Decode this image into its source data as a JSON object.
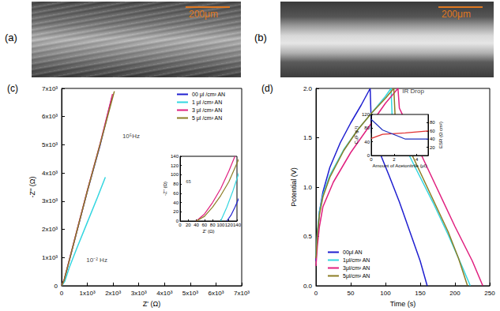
{
  "chart_data": [
    {
      "type": "image",
      "title": "(a)",
      "annotations": [
        {
          "text": "200μm"
        }
      ]
    },
    {
      "type": "image",
      "title": "(b)",
      "annotations": [
        {
          "text": "200μm"
        }
      ]
    },
    {
      "type": "line",
      "title": "(c)",
      "xlabel": "Z' (Ω)",
      "ylabel": "-Z'' (Ω)",
      "xlim": [
        0,
        7000
      ],
      "ylim": [
        0,
        7000
      ],
      "xticks": [
        0,
        {
          "value": 1000,
          "label": "1x10³"
        },
        {
          "value": 2000,
          "label": "2x10³"
        },
        {
          "value": 3000,
          "label": "3x10³"
        },
        {
          "value": 4000,
          "label": "4x10³"
        },
        {
          "value": 5000,
          "label": "5x10³"
        },
        {
          "value": 6000,
          "label": "6x10³"
        },
        {
          "value": 7000,
          "label": "7x10³"
        }
      ],
      "yticks": [
        0,
        {
          "value": 1000,
          "label": "1x10³"
        },
        {
          "value": 2000,
          "label": "2x10³"
        },
        {
          "value": 3000,
          "label": "3x10³"
        },
        {
          "value": 4000,
          "label": "4x10³"
        },
        {
          "value": 5000,
          "label": "5x10³"
        },
        {
          "value": 6000,
          "label": "6x10³"
        },
        {
          "value": 7000,
          "label": "7x10³"
        }
      ],
      "grid": false,
      "legend": "upper right",
      "series": [
        {
          "name": "00 μl /cm² AN",
          "color": "#1f1fd0",
          "x": [
            0,
            100,
            300,
            600,
            1000,
            1500,
            1950
          ],
          "values": [
            0,
            200,
            900,
            1950,
            3350,
            5000,
            6650
          ]
        },
        {
          "name": "1 μl /cm² AN",
          "color": "#33d6e0",
          "x": [
            0,
            120,
            300,
            600,
            1000,
            1400,
            1700
          ],
          "values": [
            0,
            150,
            650,
            1350,
            2250,
            3150,
            3850
          ]
        },
        {
          "name": "3 μl /cm² AN",
          "color": "#e0207f",
          "x": [
            0,
            100,
            300,
            600,
            1000,
            1500,
            1980
          ],
          "values": [
            0,
            220,
            920,
            1980,
            3380,
            5050,
            6800
          ]
        },
        {
          "name": "5 μl /cm² AN",
          "color": "#8c7d25",
          "x": [
            0,
            100,
            300,
            600,
            1000,
            1500,
            2050
          ],
          "values": [
            0,
            210,
            900,
            1960,
            3360,
            5030,
            6900
          ]
        }
      ],
      "annotations": [
        {
          "text": "10⁵Hz",
          "x": 2300,
          "y": 5300
        },
        {
          "text": "10⁻² Hz",
          "x": 900,
          "y": 900
        }
      ],
      "inset": {
        "type": "line",
        "xlabel": "Z' (Ω)",
        "ylabel": "-Z'' (Ω)",
        "xlim": [
          0,
          140
        ],
        "ylim": [
          0,
          140
        ],
        "xticks": [
          0,
          20,
          40,
          60,
          80,
          100,
          120,
          140
        ],
        "yticks": [
          0,
          20,
          40,
          60,
          80,
          100,
          120,
          140
        ],
        "grid": false,
        "series": [
          {
            "color": "#1f1fd0",
            "x": [
              115,
              125,
              135,
              145
            ],
            "values": [
              0,
              12,
              30,
              50
            ]
          },
          {
            "color": "#33d6e0",
            "x": [
              100,
              115,
              130,
              145
            ],
            "values": [
              0,
              30,
              65,
              105
            ]
          },
          {
            "color": "#e0207f",
            "x": [
              40,
              60,
              80,
              100,
              120,
              135
            ],
            "values": [
              0,
              15,
              40,
              70,
              108,
              140
            ]
          },
          {
            "color": "#8c7d25",
            "x": [
              40,
              60,
              80,
              100,
              120,
              140,
              145
            ],
            "values": [
              0,
              10,
              30,
              55,
              85,
              125,
              135
            ]
          }
        ],
        "annotations": [
          {
            "text": "65",
            "x": 10,
            "y": 85
          }
        ]
      }
    },
    {
      "type": "line",
      "title": "(d)",
      "xlabel": "Time (s)",
      "ylabel": "Potential (V)",
      "xlim": [
        0,
        250
      ],
      "ylim": [
        0,
        2
      ],
      "xticks": [
        0,
        50,
        100,
        150,
        200,
        250
      ],
      "yticks": [
        {
          "value": 0,
          "label": "0.0"
        },
        0.5,
        {
          "value": 1,
          "label": "1.0"
        },
        1.5,
        {
          "value": 2,
          "label": "2.0"
        }
      ],
      "grid": false,
      "legend": "lower left",
      "series": [
        {
          "name": "00μl AN",
          "color": "#1f1fd0",
          "x": [
            0,
            2,
            5,
            10,
            20,
            35,
            50,
            65,
            78,
            80,
            90,
            105,
            120,
            135,
            150,
            160
          ],
          "values": [
            0.25,
            0.5,
            0.75,
            0.95,
            1.2,
            1.45,
            1.65,
            1.83,
            2.0,
            1.55,
            1.38,
            1.12,
            0.85,
            0.55,
            0.25,
            0
          ]
        },
        {
          "name": "1μl/cm² AN",
          "color": "#33d6e0",
          "x": [
            0,
            2,
            5,
            10,
            20,
            40,
            60,
            80,
            100,
            108,
            110,
            130,
            150,
            170,
            190,
            210,
            222
          ],
          "values": [
            0.3,
            0.55,
            0.75,
            0.92,
            1.12,
            1.38,
            1.58,
            1.75,
            1.92,
            2.0,
            1.65,
            1.38,
            1.1,
            0.82,
            0.52,
            0.2,
            0
          ]
        },
        {
          "name": "3μl/cm² AN",
          "color": "#e0207f",
          "x": [
            0,
            2,
            5,
            10,
            25,
            50,
            80,
            100,
            118,
            120,
            140,
            170,
            200,
            225,
            240
          ],
          "values": [
            0.2,
            0.4,
            0.6,
            0.8,
            1.05,
            1.35,
            1.65,
            1.85,
            2.0,
            1.8,
            1.5,
            1.05,
            0.6,
            0.25,
            0
          ]
        },
        {
          "name": "5μl/cm² AN",
          "color": "#8c7d25",
          "x": [
            0,
            2,
            5,
            10,
            20,
            40,
            60,
            80,
            100,
            112,
            114,
            130,
            150,
            170,
            190,
            205,
            218
          ],
          "values": [
            0.28,
            0.52,
            0.72,
            0.9,
            1.1,
            1.37,
            1.58,
            1.75,
            1.9,
            2.0,
            1.7,
            1.45,
            1.15,
            0.85,
            0.55,
            0.28,
            0
          ]
        }
      ],
      "annotations": [
        {
          "text": "IR Drop",
          "x": 122,
          "y": 1.97
        }
      ],
      "inset": {
        "type": "line",
        "xlabel": "Amount of Acetonitrile (μl)",
        "ylabel": "Cₛ(F g⁻¹)",
        "y2label": "ESR (Ω cm²)",
        "xlim": [
          0,
          5
        ],
        "ylim": [
          0,
          120
        ],
        "y2lim": [
          0,
          100
        ],
        "xticks": [
          0,
          2,
          4
        ],
        "yticks": [
          0,
          40,
          80,
          120
        ],
        "y2ticks": [
          20,
          40,
          60,
          80
        ],
        "grid": false,
        "series": [
          {
            "color": "#e03030",
            "x": [
              0,
              1,
              3,
              5
            ],
            "values": [
              50,
              62,
              66,
              72
            ]
          },
          {
            "color": "#2030c0",
            "axis": "y2",
            "x": [
              0,
              1,
              3,
              5
            ],
            "values": [
              88,
              62,
              40,
              40
            ]
          }
        ]
      }
    }
  ]
}
